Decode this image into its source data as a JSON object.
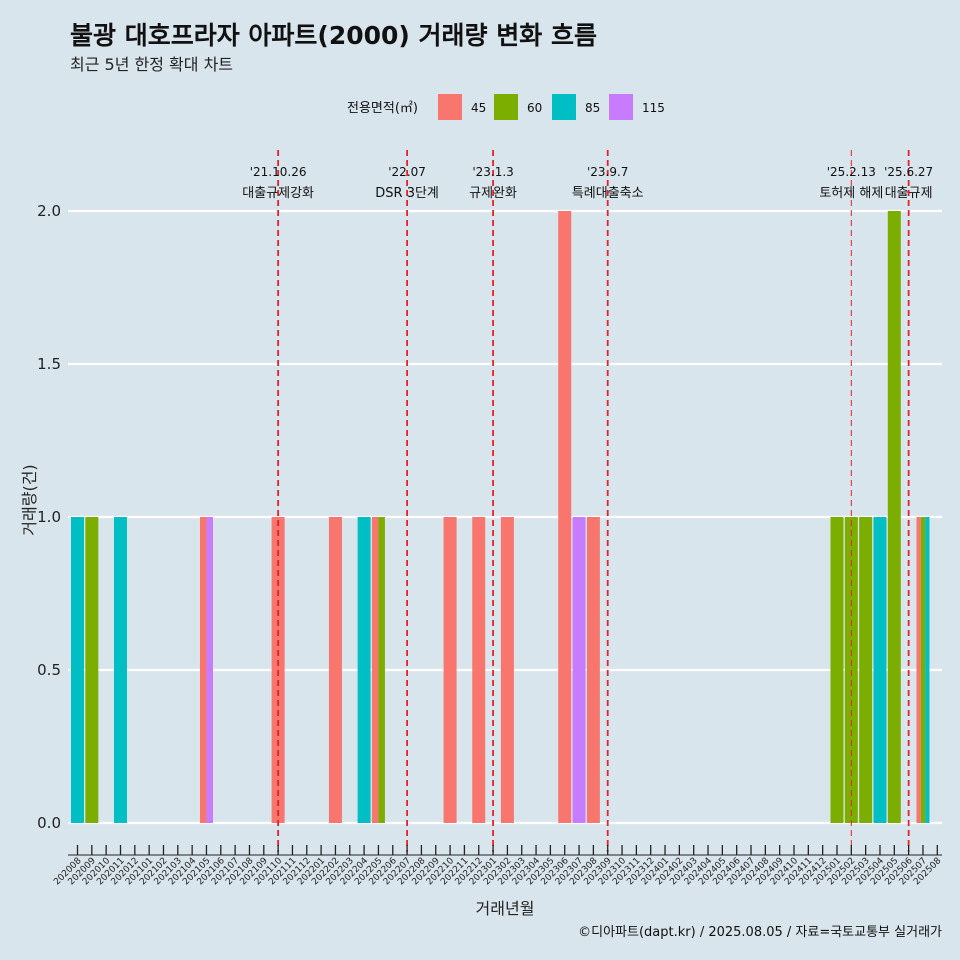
{
  "chart_data": {
    "type": "bar",
    "title": "불광 대호프라자 아파트(2000) 거래량 변화 흐름",
    "subtitle": "최근 5년 한정 확대 차트",
    "xlabel": "거래년월",
    "ylabel": "거래량(건)",
    "ylim": [
      0,
      2.2
    ],
    "yticks": [
      "0.0",
      "0.5",
      "1.0",
      "1.5",
      "2.0"
    ],
    "grid": true,
    "legend": {
      "title": "전용면적(㎡)",
      "position": "top",
      "items": [
        {
          "name": "45",
          "color": "#F8766D"
        },
        {
          "name": "60",
          "color": "#7CAE00"
        },
        {
          "name": "85",
          "color": "#00BFC4"
        },
        {
          "name": "115",
          "color": "#C77CFF"
        }
      ]
    },
    "categories": [
      "202008",
      "202009",
      "202010",
      "202011",
      "202012",
      "202101",
      "202102",
      "202103",
      "202104",
      "202105",
      "202106",
      "202107",
      "202108",
      "202109",
      "202110",
      "202111",
      "202112",
      "202201",
      "202202",
      "202203",
      "202204",
      "202205",
      "202206",
      "202207",
      "202208",
      "202209",
      "202210",
      "202211",
      "202212",
      "202301",
      "202302",
      "202303",
      "202304",
      "202305",
      "202306",
      "202307",
      "202308",
      "202309",
      "202310",
      "202311",
      "202312",
      "202401",
      "202402",
      "202403",
      "202404",
      "202405",
      "202406",
      "202407",
      "202408",
      "202409",
      "202410",
      "202411",
      "202412",
      "202501",
      "202502",
      "202503",
      "202504",
      "202505",
      "202506",
      "202507",
      "202508"
    ],
    "bars": [
      {
        "month": "202008",
        "items": [
          {
            "area": "85",
            "value": 1
          }
        ]
      },
      {
        "month": "202009",
        "items": [
          {
            "area": "60",
            "value": 1
          }
        ]
      },
      {
        "month": "202011",
        "items": [
          {
            "area": "85",
            "value": 1
          }
        ]
      },
      {
        "month": "202105",
        "items": [
          {
            "area": "45",
            "value": 1
          },
          {
            "area": "115",
            "value": 1
          }
        ]
      },
      {
        "month": "202110",
        "items": [
          {
            "area": "45",
            "value": 1
          }
        ]
      },
      {
        "month": "202202",
        "items": [
          {
            "area": "45",
            "value": 1
          }
        ]
      },
      {
        "month": "202204",
        "items": [
          {
            "area": "85",
            "value": 1
          }
        ]
      },
      {
        "month": "202205",
        "items": [
          {
            "area": "45",
            "value": 1
          },
          {
            "area": "60",
            "value": 1
          }
        ]
      },
      {
        "month": "202210",
        "items": [
          {
            "area": "45",
            "value": 1
          }
        ]
      },
      {
        "month": "202212",
        "items": [
          {
            "area": "45",
            "value": 1
          }
        ]
      },
      {
        "month": "202302",
        "items": [
          {
            "area": "45",
            "value": 1
          }
        ]
      },
      {
        "month": "202306",
        "items": [
          {
            "area": "45",
            "value": 2
          }
        ]
      },
      {
        "month": "202307",
        "items": [
          {
            "area": "115",
            "value": 1
          }
        ]
      },
      {
        "month": "202308",
        "items": [
          {
            "area": "45",
            "value": 1
          }
        ]
      },
      {
        "month": "202501",
        "items": [
          {
            "area": "60",
            "value": 1
          }
        ]
      },
      {
        "month": "202502",
        "items": [
          {
            "area": "60",
            "value": 1
          }
        ]
      },
      {
        "month": "202503",
        "items": [
          {
            "area": "60",
            "value": 1
          }
        ]
      },
      {
        "month": "202504",
        "items": [
          {
            "area": "85",
            "value": 1
          }
        ]
      },
      {
        "month": "202505",
        "items": [
          {
            "area": "60",
            "value": 2
          }
        ]
      },
      {
        "month": "202507",
        "items": [
          {
            "area": "45",
            "value": 1
          },
          {
            "area": "60",
            "value": 1
          },
          {
            "area": "85",
            "value": 1
          }
        ]
      }
    ],
    "annotations": [
      {
        "date": "'21.10.26",
        "label": "대출규제강화",
        "month_pos": 14.0
      },
      {
        "date": "'22.07",
        "label": "DSR 3단계",
        "month_pos": 23.0
      },
      {
        "date": "'23.1.3",
        "label": "규제완화",
        "month_pos": 29.0
      },
      {
        "date": "'23.9.7",
        "label": "특례대출축소",
        "month_pos": 37.0
      },
      {
        "date": "'25.2.13",
        "label": "토허제 해제",
        "month_pos": 54.0,
        "small": true
      },
      {
        "date": "'25.6.27",
        "label": "대출규제",
        "month_pos": 58.0
      }
    ],
    "caption": "©디아파트(dapt.kr) / 2025.08.05 / 자료=국토교통부 실거래가"
  },
  "colors": {
    "background": "#d9e5ec",
    "grid": "#ffffff",
    "annotation_line": "#e8202a"
  }
}
